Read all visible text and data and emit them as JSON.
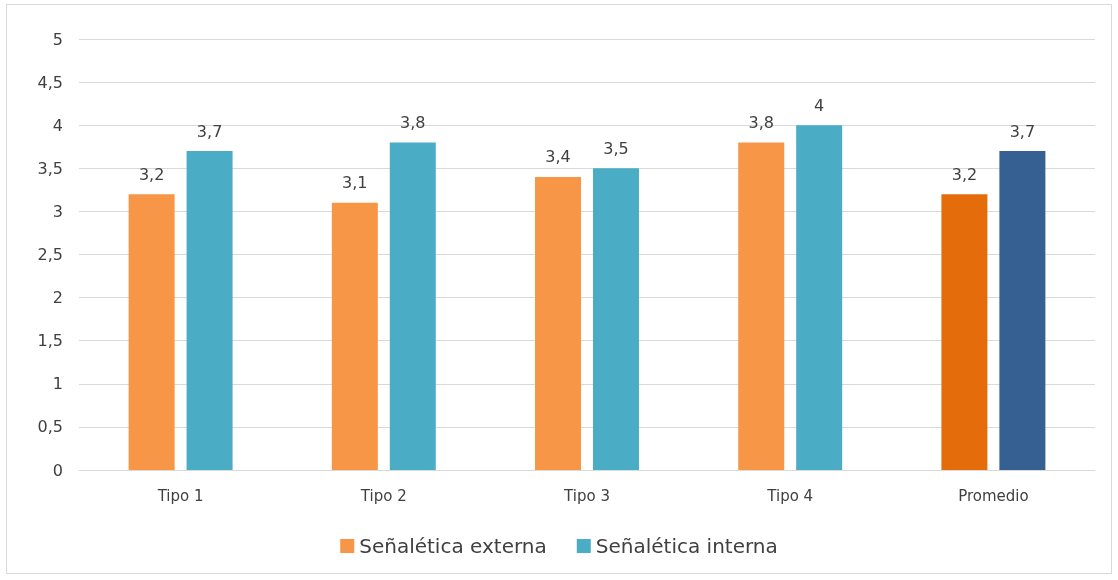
{
  "chart_data": {
    "type": "bar",
    "categories": [
      "Tipo 1",
      "Tipo 2",
      "Tipo 3",
      "Tipo 4",
      "Promedio"
    ],
    "series": [
      {
        "name": "Señalética externa",
        "color": "#f79646",
        "colors": [
          "#f79646",
          "#f79646",
          "#f79646",
          "#f79646",
          "#e46c0a"
        ],
        "values": [
          3.2,
          3.1,
          3.4,
          3.8,
          3.2
        ],
        "value_labels": [
          "3,2",
          "3,1",
          "3,4",
          "3,8",
          "3,2"
        ]
      },
      {
        "name": "Señalética interna",
        "color": "#4bacc6",
        "colors": [
          "#4bacc6",
          "#4bacc6",
          "#4bacc6",
          "#4bacc6",
          "#366092"
        ],
        "values": [
          3.7,
          3.8,
          3.5,
          4,
          3.7
        ],
        "value_labels": [
          "3,7",
          "3,8",
          "3,5",
          "4",
          "3,7"
        ]
      }
    ],
    "ylim": [
      0,
      5
    ],
    "yticks": [
      0,
      {
        "value": 0.5,
        "label": "0,5"
      },
      1,
      {
        "value": 1.5,
        "label": "1,5"
      },
      2,
      {
        "value": 2.5,
        "label": "2,5"
      },
      3,
      {
        "value": 3.5,
        "label": "3,5"
      },
      4,
      {
        "value": 4.5,
        "label": "4,5"
      },
      5
    ],
    "grid": "y",
    "legend": "bottom"
  }
}
